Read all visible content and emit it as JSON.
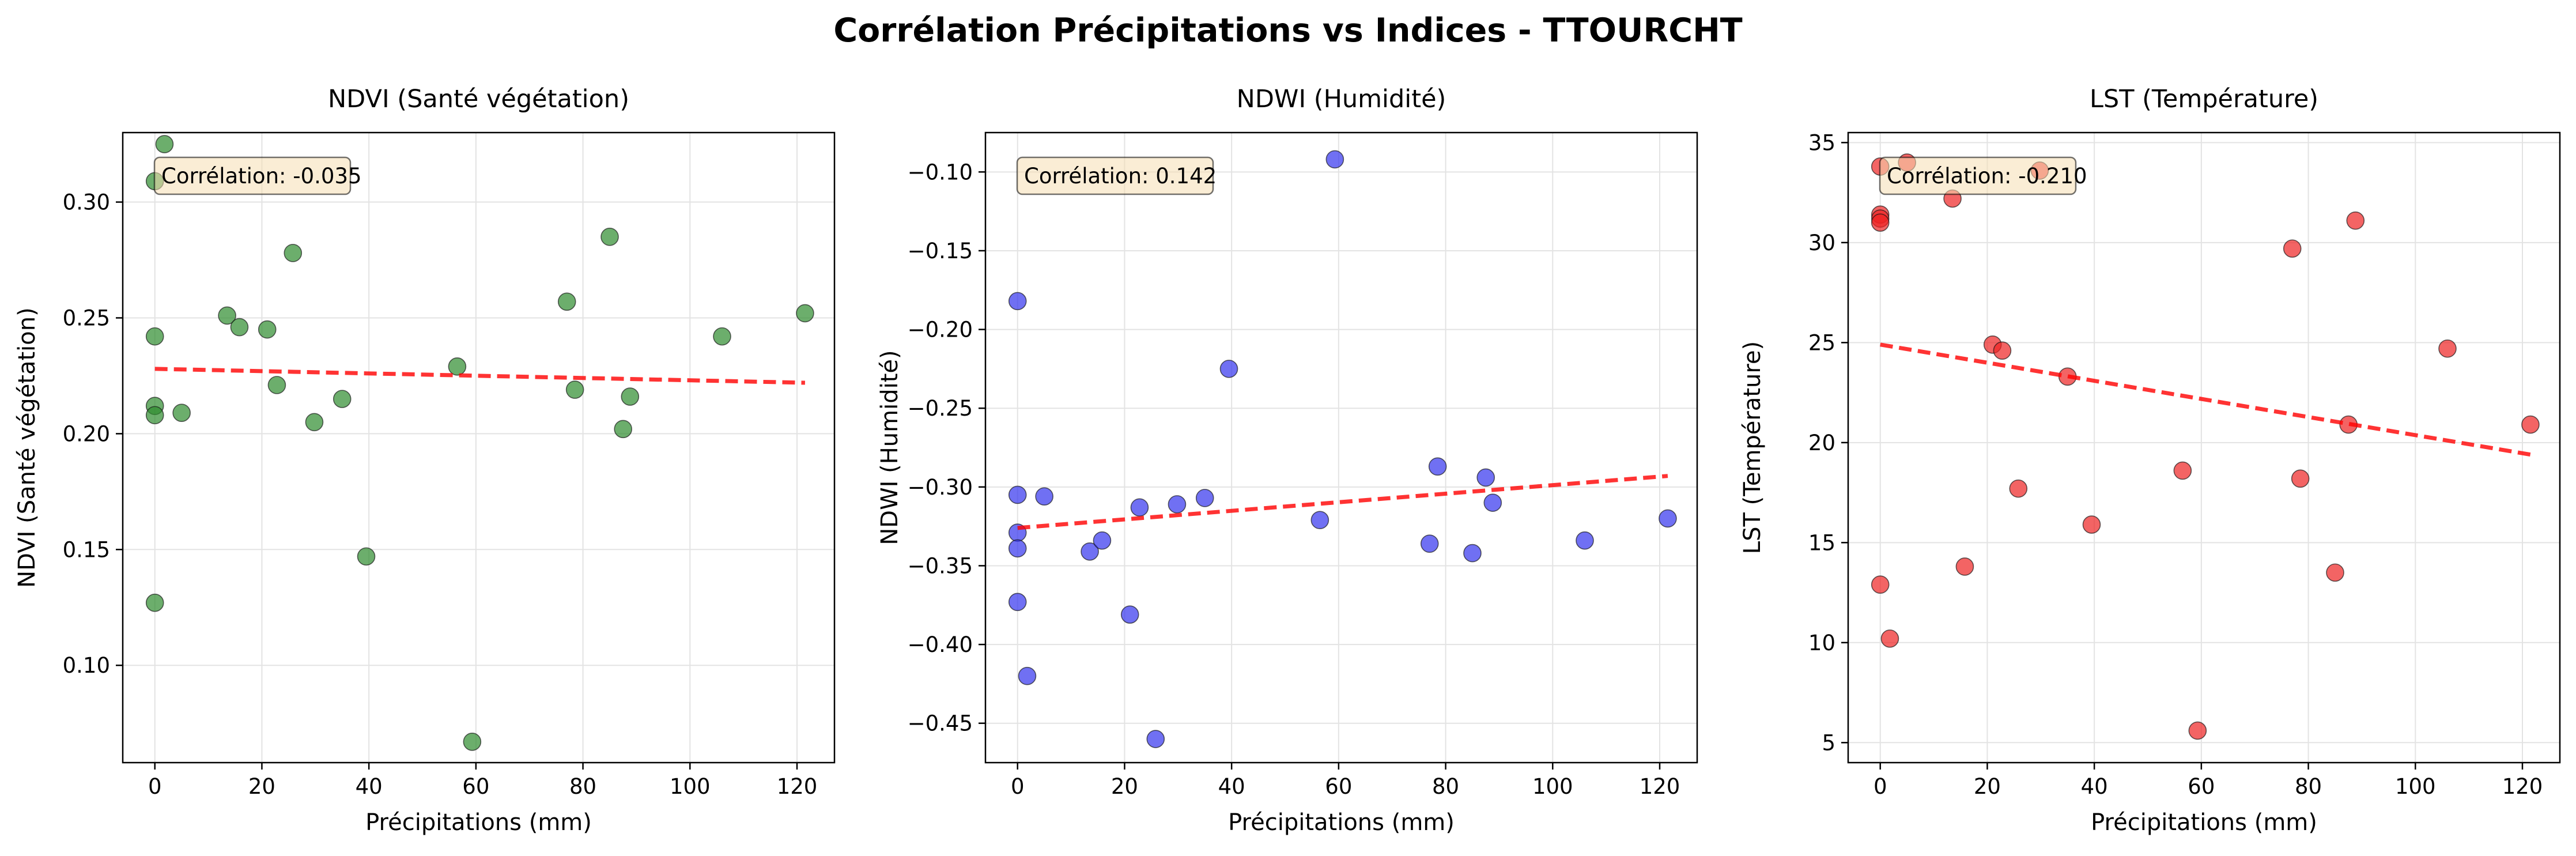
{
  "suptitle": "Corrélation Précipitations vs Indices - TTOURCHT",
  "chart_data": [
    {
      "type": "scatter",
      "title": "NDVI (Santé végétation)",
      "xlabel": "Précipitations (mm)",
      "ylabel": "NDVI (Santé végétation)",
      "xlim": [
        -6,
        127
      ],
      "ylim": [
        0.058,
        0.33
      ],
      "xticks": [
        0,
        20,
        40,
        60,
        80,
        100,
        120
      ],
      "yticks": [
        0.1,
        0.15,
        0.2,
        0.25,
        0.3
      ],
      "ytick_labels": [
        "0.10",
        "0.15",
        "0.20",
        "0.25",
        "0.30"
      ],
      "grid": true,
      "annotation": "Corrélation: -0.035",
      "point_color": "#2e8b2e",
      "x": [
        0,
        0,
        0,
        0,
        0,
        1.8,
        5,
        13.5,
        15.8,
        21,
        22.8,
        25.8,
        29.8,
        35,
        39.5,
        56.5,
        59.3,
        77,
        78.5,
        85,
        87.5,
        88.8,
        106,
        121.5
      ],
      "y": [
        0.309,
        0.242,
        0.212,
        0.208,
        0.127,
        0.325,
        0.209,
        0.251,
        0.246,
        0.245,
        0.221,
        0.278,
        0.205,
        0.215,
        0.147,
        0.229,
        0.067,
        0.257,
        0.219,
        0.285,
        0.202,
        0.216,
        0.242,
        0.252
      ],
      "trend": {
        "x": [
          0,
          121.5
        ],
        "y": [
          0.228,
          0.222
        ],
        "color": "#ff0000"
      }
    },
    {
      "type": "scatter",
      "title": "NDWI (Humidité)",
      "xlabel": "Précipitations (mm)",
      "ylabel": "NDWI (Humidité)",
      "xlim": [
        -6,
        127
      ],
      "ylim": [
        -0.475,
        -0.075
      ],
      "xticks": [
        0,
        20,
        40,
        60,
        80,
        100,
        120
      ],
      "yticks": [
        -0.45,
        -0.4,
        -0.35,
        -0.3,
        -0.25,
        -0.2,
        -0.15,
        -0.1
      ],
      "ytick_labels": [
        "−0.45",
        "−0.40",
        "−0.35",
        "−0.30",
        "−0.25",
        "−0.20",
        "−0.15",
        "−0.10"
      ],
      "grid": true,
      "annotation": "Corrélation: 0.142",
      "point_color": "#3333ee",
      "x": [
        0,
        0,
        0,
        0,
        0,
        1.8,
        5,
        13.5,
        15.8,
        21,
        22.8,
        25.8,
        29.8,
        35,
        39.5,
        56.5,
        59.3,
        77,
        78.5,
        85,
        87.5,
        88.8,
        106,
        121.5
      ],
      "y": [
        -0.182,
        -0.305,
        -0.329,
        -0.339,
        -0.373,
        -0.42,
        -0.306,
        -0.341,
        -0.334,
        -0.381,
        -0.313,
        -0.46,
        -0.311,
        -0.307,
        -0.225,
        -0.321,
        -0.092,
        -0.336,
        -0.287,
        -0.342,
        -0.294,
        -0.31,
        -0.334,
        -0.32
      ],
      "trend": {
        "x": [
          0,
          121.5
        ],
        "y": [
          -0.326,
          -0.293
        ],
        "color": "#ff0000"
      }
    },
    {
      "type": "scatter",
      "title": "LST (Température)",
      "xlabel": "Précipitations (mm)",
      "ylabel": "LST (Température)",
      "xlim": [
        -6,
        127
      ],
      "ylim": [
        4.0,
        35.5
      ],
      "xticks": [
        0,
        20,
        40,
        60,
        80,
        100,
        120
      ],
      "yticks": [
        5,
        10,
        15,
        20,
        25,
        30,
        35
      ],
      "ytick_labels": [
        "5",
        "10",
        "15",
        "20",
        "25",
        "30",
        "35"
      ],
      "grid": true,
      "annotation": "Corrélation: -0.210",
      "point_color": "#ee2222",
      "x": [
        0,
        0,
        0,
        0,
        0,
        1.8,
        5,
        13.5,
        15.8,
        21,
        22.8,
        25.8,
        29.8,
        35,
        39.5,
        56.5,
        59.3,
        77,
        78.5,
        85,
        87.5,
        88.8,
        106,
        121.5
      ],
      "y": [
        33.8,
        31.4,
        31.2,
        31.0,
        12.9,
        10.2,
        34.0,
        32.2,
        13.8,
        24.9,
        24.6,
        17.7,
        33.6,
        23.3,
        15.9,
        18.6,
        5.6,
        29.7,
        18.2,
        13.5,
        20.9,
        31.1,
        24.7,
        20.9
      ],
      "trend": {
        "x": [
          0,
          121.5
        ],
        "y": [
          24.9,
          19.4
        ],
        "color": "#ff0000"
      }
    }
  ]
}
